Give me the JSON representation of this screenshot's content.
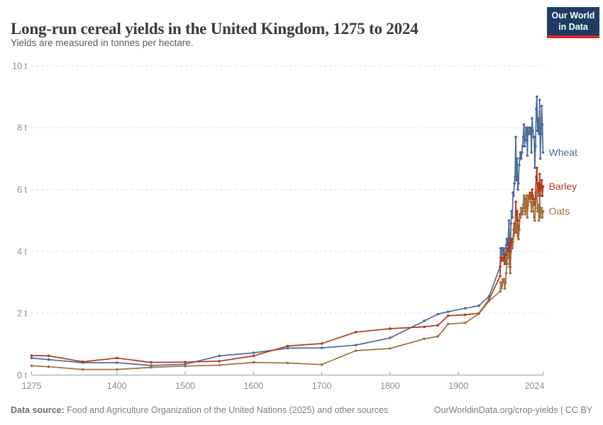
{
  "header": {
    "title": "Long-run cereal yields in the United Kingdom, 1275 to 2024",
    "subtitle": "Yields are measured in tonnes per hectare."
  },
  "logo": {
    "line1": "Our World",
    "line2": "in Data",
    "bg_color": "#1d3d63",
    "bar_color": "#e0272b"
  },
  "footer": {
    "source_label": "Data source:",
    "source_rest": " Food and Agriculture Organization of the United Nations (2025) and other sources",
    "right_text": "OurWorldinData.org/crop-yields | CC BY"
  },
  "chart_data": {
    "type": "line",
    "title": "Long-run cereal yields in the United Kingdom, 1275 to 2024",
    "subtitle": "Yields are measured in tonnes per hectare.",
    "unit": "tonnes per hectare",
    "grid": true,
    "legend_position": "end-of-line",
    "x_axis": {
      "range": [
        1275,
        2024
      ],
      "ticks": [
        1275,
        1400,
        1500,
        1600,
        1700,
        1800,
        1900,
        2024
      ]
    },
    "y_axis": {
      "range": [
        0,
        10
      ],
      "ticks": [
        0,
        2,
        4,
        6,
        8,
        10
      ],
      "unit": " t"
    },
    "colors": {
      "grid": "#dcdcdc",
      "axis": "#9e9e9e",
      "tick_text": "#8c8c8c"
    },
    "series": [
      {
        "name": "Wheat",
        "color": "#4C6A9C",
        "historical": [
          [
            1275,
            0.55
          ],
          [
            1300,
            0.5
          ],
          [
            1350,
            0.4
          ],
          [
            1400,
            0.4
          ],
          [
            1450,
            0.31
          ],
          [
            1500,
            0.35
          ],
          [
            1550,
            0.62
          ],
          [
            1600,
            0.72
          ],
          [
            1650,
            0.87
          ],
          [
            1700,
            0.88
          ],
          [
            1750,
            0.97
          ],
          [
            1800,
            1.2
          ],
          [
            1850,
            1.75
          ],
          [
            1870,
            1.97
          ],
          [
            1885,
            2.05
          ],
          [
            1910,
            2.16
          ],
          [
            1930,
            2.24
          ],
          [
            1945,
            2.55
          ]
        ],
        "annual_start": 1961,
        "annual": [
          3.5,
          4.1,
          3.9,
          4.1,
          4.1,
          3.9,
          4.1,
          3.6,
          3.9,
          4.2,
          4.4,
          4.2,
          4.4,
          5.0,
          4.3,
          3.8,
          4.9,
          5.3,
          5.1,
          5.9,
          5.8,
          6.2,
          6.4,
          7.7,
          6.3,
          7.0,
          6.0,
          6.2,
          6.8,
          7.0,
          7.2,
          7.0,
          7.2,
          7.4,
          7.7,
          8.1,
          7.4,
          7.6,
          8.0,
          8.0,
          7.1,
          8.0,
          7.8,
          7.8,
          8.0,
          8.0,
          7.2,
          8.3,
          7.9,
          7.7,
          7.7,
          6.7,
          7.4,
          8.6,
          9.0,
          7.9,
          8.3,
          7.8,
          8.9,
          7.0,
          7.8,
          8.7,
          8.1,
          7.2
        ]
      },
      {
        "name": "Barley",
        "color": "#B3391D",
        "historical": [
          [
            1275,
            0.63
          ],
          [
            1300,
            0.62
          ],
          [
            1350,
            0.43
          ],
          [
            1400,
            0.55
          ],
          [
            1450,
            0.41
          ],
          [
            1500,
            0.42
          ],
          [
            1550,
            0.45
          ],
          [
            1600,
            0.62
          ],
          [
            1650,
            0.94
          ],
          [
            1700,
            1.02
          ],
          [
            1750,
            1.39
          ],
          [
            1800,
            1.5
          ],
          [
            1850,
            1.56
          ],
          [
            1870,
            1.61
          ],
          [
            1885,
            1.92
          ],
          [
            1910,
            1.95
          ],
          [
            1930,
            2.0
          ],
          [
            1945,
            2.45
          ]
        ],
        "annual_start": 1961,
        "annual": [
          3.2,
          3.8,
          3.7,
          3.8,
          3.8,
          3.7,
          3.9,
          3.6,
          3.6,
          3.6,
          3.9,
          4.1,
          4.0,
          4.3,
          3.6,
          3.5,
          4.4,
          4.4,
          4.2,
          4.4,
          4.7,
          4.9,
          4.6,
          5.6,
          5.0,
          5.3,
          5.0,
          4.4,
          4.7,
          5.2,
          5.2,
          5.4,
          5.3,
          5.3,
          5.4,
          5.8,
          5.7,
          5.3,
          5.6,
          5.8,
          5.4,
          5.6,
          5.8,
          5.8,
          5.9,
          5.8,
          5.7,
          6.0,
          5.8,
          5.7,
          5.5,
          5.5,
          5.9,
          6.4,
          6.7,
          5.9,
          6.2,
          5.8,
          6.5,
          5.8,
          6.1,
          6.3,
          5.8,
          6.1
        ]
      },
      {
        "name": "Oats",
        "color": "#A2703A",
        "historical": [
          [
            1275,
            0.3
          ],
          [
            1300,
            0.27
          ],
          [
            1350,
            0.18
          ],
          [
            1400,
            0.18
          ],
          [
            1450,
            0.25
          ],
          [
            1500,
            0.29
          ],
          [
            1550,
            0.32
          ],
          [
            1600,
            0.41
          ],
          [
            1650,
            0.39
          ],
          [
            1700,
            0.34
          ],
          [
            1750,
            0.79
          ],
          [
            1800,
            0.86
          ],
          [
            1850,
            1.17
          ],
          [
            1870,
            1.25
          ],
          [
            1885,
            1.65
          ],
          [
            1910,
            1.69
          ],
          [
            1930,
            1.98
          ],
          [
            1945,
            2.4
          ]
        ],
        "annual_start": 1961,
        "annual": [
          2.7,
          3.0,
          2.8,
          2.9,
          3.1,
          3.0,
          3.1,
          2.8,
          3.0,
          3.3,
          3.6,
          3.8,
          3.8,
          3.9,
          3.5,
          3.3,
          4.0,
          4.1,
          4.1,
          4.3,
          4.5,
          4.7,
          4.6,
          5.1,
          4.6,
          4.9,
          4.5,
          4.4,
          4.7,
          5.1,
          5.1,
          5.4,
          5.2,
          5.2,
          5.5,
          5.8,
          5.6,
          5.2,
          5.6,
          5.8,
          5.1,
          5.5,
          5.7,
          5.7,
          5.8,
          5.6,
          5.3,
          5.6,
          5.5,
          5.3,
          5.1,
          5.0,
          5.4,
          5.9,
          6.0,
          5.3,
          5.5,
          5.0,
          5.9,
          5.1,
          5.4,
          5.4,
          5.1,
          5.3
        ]
      }
    ]
  }
}
